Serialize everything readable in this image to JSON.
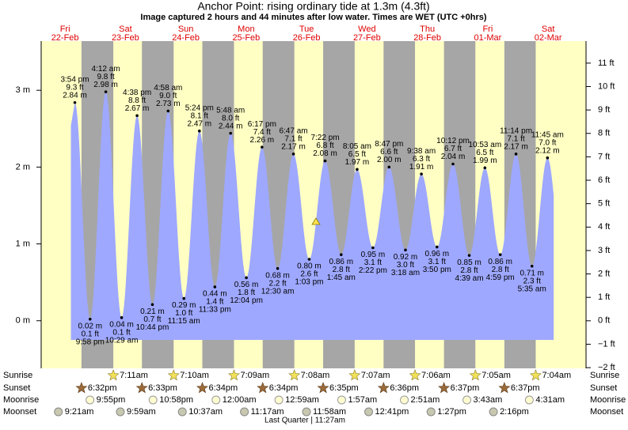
{
  "chart_data": {
    "type": "tide",
    "title": "Anchor Point: rising  ordinary tide at 1.3m (4.3ft)",
    "subtitle": "Image captured 2 hours and 44 minutes after low water. Times are WET (UTC +0hrs)",
    "ylim": [
      -0.62,
      3.64
    ],
    "yticks": [
      {
        "value": 0,
        "label": "0 m"
      },
      {
        "value": 1,
        "label": "1 m"
      },
      {
        "value": 2,
        "label": "2 m"
      },
      {
        "value": 3,
        "label": "3 m"
      }
    ],
    "y2lim": [
      -2.03,
      11.94
    ],
    "y2ticks": [
      {
        "value": -2,
        "label": "−2 ft"
      },
      {
        "value": -1,
        "label": "−1 ft"
      },
      {
        "value": 0,
        "label": "0 ft"
      },
      {
        "value": 1,
        "label": "1 ft"
      },
      {
        "value": 2,
        "label": "2 ft"
      },
      {
        "value": 3,
        "label": "3 ft"
      },
      {
        "value": 4,
        "label": "4 ft"
      },
      {
        "value": 5,
        "label": "5 ft"
      },
      {
        "value": 6,
        "label": "6 ft"
      },
      {
        "value": 7,
        "label": "7 ft"
      },
      {
        "value": 8,
        "label": "8 ft"
      },
      {
        "value": 9,
        "label": "9 ft"
      },
      {
        "value": 10,
        "label": "10 ft"
      },
      {
        "value": 11,
        "label": "11 ft"
      }
    ],
    "color": "#9ea8ff",
    "day_color": "#ffffc4",
    "night_color": "#a6a6a6",
    "row_labels": [
      "Sunrise",
      "Sunset",
      "Moonrise",
      "Moonset"
    ],
    "footer": "Last Quarter | 11:27am",
    "days": [
      {
        "weekday": "Fri",
        "date": "22-Feb",
        "sunrise": null,
        "sunset": "6:32pm",
        "moonrise": "9:55pm",
        "moonset": "9:21am",
        "extremes": [
          {
            "time": "3:54 pm",
            "height": 2.84,
            "height_label": "2.84 m",
            "feet_label": "9.3 ft",
            "kind": "high"
          },
          {
            "time": "9:58 pm",
            "height": 0.02,
            "height_label": "0.02 m",
            "feet_label": "0.1 ft",
            "kind": "low"
          }
        ]
      },
      {
        "weekday": "Sat",
        "date": "23-Feb",
        "sunrise": "7:11am",
        "sunset": "6:33pm",
        "moonrise": "10:58pm",
        "moonset": "9:59am",
        "extremes": [
          {
            "time": "4:12 am",
            "height": 2.98,
            "height_label": "2.98 m",
            "feet_label": "9.8 ft",
            "kind": "high"
          },
          {
            "time": "10:29 am",
            "height": 0.04,
            "height_label": "0.04 m",
            "feet_label": "0.1 ft",
            "kind": "low"
          },
          {
            "time": "4:38 pm",
            "height": 2.67,
            "height_label": "2.67 m",
            "feet_label": "8.8 ft",
            "kind": "high"
          },
          {
            "time": "10:44 pm",
            "height": 0.21,
            "height_label": "0.21 m",
            "feet_label": "0.7 ft",
            "kind": "low"
          }
        ]
      },
      {
        "weekday": "Sun",
        "date": "24-Feb",
        "sunrise": "7:10am",
        "sunset": "6:34pm",
        "moonrise": null,
        "moonset": "10:37am",
        "extremes": [
          {
            "time": "4:58 am",
            "height": 2.73,
            "height_label": "2.73 m",
            "feet_label": "9.0 ft",
            "kind": "high"
          },
          {
            "time": "11:15 am",
            "height": 0.29,
            "height_label": "0.29 m",
            "feet_label": "1.0 ft",
            "kind": "low"
          },
          {
            "time": "5:24 pm",
            "height": 2.47,
            "height_label": "2.47 m",
            "feet_label": "8.1 ft",
            "kind": "high"
          },
          {
            "time": "11:33 pm",
            "height": 0.44,
            "height_label": "0.44 m",
            "feet_label": "1.4 ft",
            "kind": "low"
          }
        ]
      },
      {
        "weekday": "Mon",
        "date": "25-Feb",
        "sunrise": "7:09am",
        "sunset": "6:34pm",
        "moonrise": "12:00am",
        "moonset": "11:17am",
        "extremes": [
          {
            "time": "5:48 am",
            "height": 2.44,
            "height_label": "2.44 m",
            "feet_label": "8.0 ft",
            "kind": "high"
          },
          {
            "time": "12:04 pm",
            "height": 0.56,
            "height_label": "0.56 m",
            "feet_label": "1.8 ft",
            "kind": "low"
          },
          {
            "time": "6:17 pm",
            "height": 2.26,
            "height_label": "2.26 m",
            "feet_label": "7.4 ft",
            "kind": "high"
          }
        ]
      },
      {
        "weekday": "Tue",
        "date": "26-Feb",
        "sunrise": "7:08am",
        "sunset": "6:35pm",
        "moonrise": "12:59am",
        "moonset": "11:58am",
        "extremes": [
          {
            "time": "12:30 am",
            "height": 0.68,
            "height_label": "0.68 m",
            "feet_label": "2.2 ft",
            "kind": "low"
          },
          {
            "time": "6:47 am",
            "height": 2.17,
            "height_label": "2.17 m",
            "feet_label": "7.1 ft",
            "kind": "high"
          },
          {
            "time": "1:03 pm",
            "height": 0.8,
            "height_label": "0.80 m",
            "feet_label": "2.6 ft",
            "kind": "low"
          },
          {
            "time": "7:22 pm",
            "height": 2.08,
            "height_label": "2.08 m",
            "feet_label": "6.8 ft",
            "kind": "high"
          }
        ]
      },
      {
        "weekday": "Wed",
        "date": "27-Feb",
        "sunrise": "7:07am",
        "sunset": "6:36pm",
        "moonrise": "1:57am",
        "moonset": "12:41pm",
        "extremes": [
          {
            "time": "1:45 am",
            "height": 0.86,
            "height_label": "0.86 m",
            "feet_label": "2.8 ft",
            "kind": "low"
          },
          {
            "time": "8:05 am",
            "height": 1.97,
            "height_label": "1.97 m",
            "feet_label": "6.5 ft",
            "kind": "high"
          },
          {
            "time": "2:22 pm",
            "height": 0.95,
            "height_label": "0.95 m",
            "feet_label": "3.1 ft",
            "kind": "low"
          },
          {
            "time": "8:47 pm",
            "height": 2.0,
            "height_label": "2.00 m",
            "feet_label": "6.6 ft",
            "kind": "high"
          }
        ]
      },
      {
        "weekday": "Thu",
        "date": "28-Feb",
        "sunrise": "7:06am",
        "sunset": "6:37pm",
        "moonrise": "2:51am",
        "moonset": "1:27pm",
        "extremes": [
          {
            "time": "3:18 am",
            "height": 0.92,
            "height_label": "0.92 m",
            "feet_label": "3.0 ft",
            "kind": "low"
          },
          {
            "time": "9:38 am",
            "height": 1.91,
            "height_label": "1.91 m",
            "feet_label": "6.3 ft",
            "kind": "high"
          },
          {
            "time": "3:50 pm",
            "height": 0.96,
            "height_label": "0.96 m",
            "feet_label": "3.1 ft",
            "kind": "low"
          },
          {
            "time": "10:12 pm",
            "height": 2.04,
            "height_label": "2.04 m",
            "feet_label": "6.7 ft",
            "kind": "high"
          }
        ]
      },
      {
        "weekday": "Fri",
        "date": "01-Mar",
        "sunrise": "7:05am",
        "sunset": "6:37pm",
        "moonrise": "3:43am",
        "moonset": "2:16pm",
        "extremes": [
          {
            "time": "4:39 am",
            "height": 0.85,
            "height_label": "0.85 m",
            "feet_label": "2.8 ft",
            "kind": "low"
          },
          {
            "time": "10:53 am",
            "height": 1.99,
            "height_label": "1.99 m",
            "feet_label": "6.5 ft",
            "kind": "high"
          },
          {
            "time": "4:59 pm",
            "height": 0.86,
            "height_label": "0.86 m",
            "feet_label": "2.8 ft",
            "kind": "low"
          },
          {
            "time": "11:14 pm",
            "height": 2.17,
            "height_label": "2.17 m",
            "feet_label": "7.1 ft",
            "kind": "high"
          }
        ]
      },
      {
        "weekday": "Sat",
        "date": "02-Mar",
        "sunrise": "7:04am",
        "sunset": null,
        "moonrise": "4:31am",
        "moonset": null,
        "extremes": [
          {
            "time": "5:35 am",
            "height": 0.71,
            "height_label": "0.71 m",
            "feet_label": "2.3 ft",
            "kind": "low"
          },
          {
            "time": "11:45 am",
            "height": 2.12,
            "height_label": "2.12 m",
            "feet_label": "7.0 ft",
            "kind": "high"
          }
        ]
      }
    ]
  }
}
